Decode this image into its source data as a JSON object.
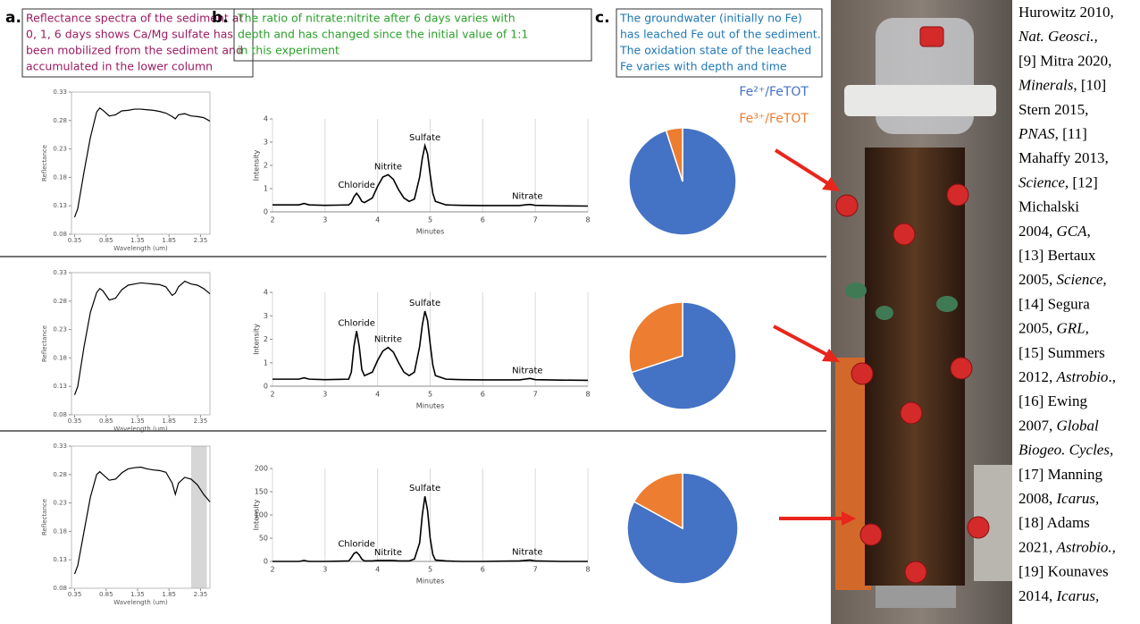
{
  "panels": [
    {
      "letter": "a.",
      "color": "#9b1b60",
      "lines": [
        "Reflectance spectra of the sediment at",
        "0, 1, 6 days shows Ca/Mg sulfate has",
        "been mobilized from the sediment and",
        "accumulated in the lower column"
      ]
    },
    {
      "letter": "b.",
      "color": "#2ca02c",
      "lines": [
        "The ratio of nitrate:nitrite after 6 days varies with",
        "depth and has changed since the initial value of 1:1",
        "in this experiment"
      ]
    },
    {
      "letter": "c.",
      "color": "#1f77b4",
      "lines": [
        "The groundwater (initially no Fe)",
        "has leached Fe out of the sediment.",
        "The oxidation state of the leached",
        "Fe varies with depth and time"
      ]
    }
  ],
  "chart_data": [
    {
      "type": "line",
      "xlabel": "Wavelength (um)",
      "ylabel": "Reflectance",
      "color": "#000000",
      "x": [
        0.35,
        0.4,
        0.5,
        0.6,
        0.7,
        0.75,
        0.8,
        0.9,
        1.0,
        1.1,
        1.2,
        1.3,
        1.4,
        1.5,
        1.6,
        1.7,
        1.8,
        1.9,
        1.95,
        2.0,
        2.1,
        2.2,
        2.3,
        2.4,
        2.5
      ],
      "values": [
        0.11,
        0.125,
        0.19,
        0.25,
        0.295,
        0.302,
        0.298,
        0.288,
        0.29,
        0.297,
        0.298,
        0.3,
        0.3,
        0.299,
        0.298,
        0.296,
        0.293,
        0.287,
        0.283,
        0.29,
        0.292,
        0.288,
        0.287,
        0.285,
        0.279
      ],
      "xlim": [
        0.3,
        2.5
      ],
      "xticks": [
        0.35,
        0.85,
        1.35,
        1.85,
        2.35
      ],
      "ylim": [
        0.08,
        0.33
      ],
      "yticks": [
        0.08,
        0.13,
        0.18,
        0.23,
        0.28,
        0.33
      ]
    },
    {
      "type": "line",
      "xlabel": "Minutes",
      "ylabel": "Intensity",
      "color": "#000000",
      "grid": true,
      "annotations": [
        "Chloride",
        "Nitrite",
        "Sulfate",
        "Nitrate"
      ],
      "x": [
        2,
        2.5,
        2.55,
        2.6,
        2.65,
        2.7,
        3,
        3.45,
        3.5,
        3.55,
        3.6,
        3.65,
        3.7,
        3.75,
        3.9,
        4.0,
        4.1,
        4.2,
        4.3,
        4.4,
        4.5,
        4.6,
        4.7,
        4.8,
        4.85,
        4.9,
        4.95,
        5.0,
        5.05,
        5.1,
        5.3,
        5.6,
        6.0,
        6.7,
        6.8,
        6.9,
        7.0,
        7.5,
        8
      ],
      "values": [
        0.3,
        0.3,
        0.33,
        0.36,
        0.33,
        0.3,
        0.28,
        0.3,
        0.4,
        0.65,
        0.8,
        0.65,
        0.45,
        0.4,
        0.6,
        1.1,
        1.5,
        1.6,
        1.4,
        0.95,
        0.6,
        0.45,
        0.55,
        1.5,
        2.3,
        2.85,
        2.5,
        1.6,
        0.8,
        0.45,
        0.3,
        0.28,
        0.27,
        0.27,
        0.3,
        0.32,
        0.28,
        0.26,
        0.25
      ],
      "xlim": [
        2,
        8
      ],
      "xticks": [
        2,
        3,
        4,
        5,
        6,
        7,
        8
      ],
      "ylim": [
        0,
        4
      ],
      "yticks": [
        0,
        1,
        2,
        3,
        4
      ]
    },
    {
      "type": "pie",
      "categories": [
        "Fe²⁺/FeTOT",
        "Fe³⁺/FeTOT"
      ],
      "colors": [
        "#4472c4",
        "#ed7d31"
      ],
      "values": [
        95,
        5
      ]
    },
    {
      "type": "line",
      "xlabel": "Wavelength (um)",
      "ylabel": "Reflectance",
      "color": "#000000",
      "x": [
        0.35,
        0.4,
        0.5,
        0.6,
        0.7,
        0.75,
        0.8,
        0.9,
        1.0,
        1.1,
        1.2,
        1.3,
        1.4,
        1.5,
        1.6,
        1.7,
        1.8,
        1.9,
        1.95,
        2.0,
        2.1,
        2.2,
        2.3,
        2.4,
        2.5
      ],
      "values": [
        0.115,
        0.13,
        0.2,
        0.26,
        0.295,
        0.302,
        0.298,
        0.282,
        0.285,
        0.3,
        0.308,
        0.31,
        0.312,
        0.311,
        0.31,
        0.309,
        0.305,
        0.29,
        0.294,
        0.305,
        0.315,
        0.31,
        0.308,
        0.302,
        0.293
      ],
      "xlim": [
        0.3,
        2.5
      ],
      "xticks": [
        0.35,
        0.85,
        1.35,
        1.85,
        2.35
      ],
      "ylim": [
        0.08,
        0.33
      ],
      "yticks": [
        0.08,
        0.13,
        0.18,
        0.23,
        0.28,
        0.33
      ]
    },
    {
      "type": "line",
      "xlabel": "Minutes",
      "ylabel": "Intensity",
      "color": "#000000",
      "grid": true,
      "annotations": [
        "Chloride",
        "Nitrite",
        "Sulfate",
        "Nitrate"
      ],
      "x": [
        2,
        2.5,
        2.55,
        2.6,
        2.65,
        2.7,
        3,
        3.45,
        3.5,
        3.55,
        3.6,
        3.65,
        3.7,
        3.75,
        3.9,
        4.0,
        4.1,
        4.2,
        4.3,
        4.4,
        4.5,
        4.6,
        4.7,
        4.8,
        4.85,
        4.9,
        4.95,
        5.0,
        5.05,
        5.1,
        5.3,
        5.6,
        6.0,
        6.7,
        6.8,
        6.9,
        7.0,
        7.5,
        8
      ],
      "values": [
        0.3,
        0.3,
        0.33,
        0.36,
        0.33,
        0.3,
        0.28,
        0.3,
        0.6,
        1.7,
        2.35,
        1.7,
        0.7,
        0.45,
        0.6,
        1.1,
        1.5,
        1.65,
        1.45,
        1.0,
        0.6,
        0.45,
        0.6,
        1.7,
        2.6,
        3.2,
        2.8,
        1.8,
        0.9,
        0.45,
        0.3,
        0.28,
        0.27,
        0.27,
        0.3,
        0.33,
        0.28,
        0.26,
        0.25
      ],
      "xlim": [
        2,
        8
      ],
      "xticks": [
        2,
        3,
        4,
        5,
        6,
        7,
        8
      ],
      "ylim": [
        0,
        4
      ],
      "yticks": [
        0,
        1,
        2,
        3,
        4
      ]
    },
    {
      "type": "pie",
      "colors": [
        "#4472c4",
        "#ed7d31"
      ],
      "values": [
        70,
        30
      ]
    },
    {
      "type": "line",
      "xlabel": "Wavelength (um)",
      "ylabel": "Reflectance",
      "color": "#000000",
      "shade": [
        2.2,
        2.45
      ],
      "x": [
        0.35,
        0.4,
        0.5,
        0.6,
        0.7,
        0.75,
        0.8,
        0.9,
        1.0,
        1.1,
        1.2,
        1.3,
        1.4,
        1.5,
        1.6,
        1.7,
        1.8,
        1.9,
        1.95,
        2.0,
        2.1,
        2.2,
        2.3,
        2.4,
        2.5
      ],
      "values": [
        0.105,
        0.12,
        0.18,
        0.24,
        0.28,
        0.285,
        0.28,
        0.27,
        0.272,
        0.283,
        0.29,
        0.292,
        0.293,
        0.29,
        0.288,
        0.287,
        0.284,
        0.265,
        0.245,
        0.265,
        0.275,
        0.272,
        0.262,
        0.245,
        0.232
      ],
      "xlim": [
        0.3,
        2.5
      ],
      "xticks": [
        0.35,
        0.85,
        1.35,
        1.85,
        2.35
      ],
      "ylim": [
        0.08,
        0.33
      ],
      "yticks": [
        0.08,
        0.13,
        0.18,
        0.23,
        0.28,
        0.33
      ]
    },
    {
      "type": "line",
      "xlabel": "Minutes",
      "ylabel": "Intensity",
      "color": "#000000",
      "grid": true,
      "annotations": [
        "Chloride",
        "Nitrite",
        "Sulfate",
        "Nitrate"
      ],
      "x": [
        2,
        2.5,
        2.55,
        2.6,
        2.65,
        2.7,
        3,
        3.45,
        3.5,
        3.55,
        3.6,
        3.65,
        3.7,
        3.75,
        3.9,
        4.0,
        4.1,
        4.2,
        4.3,
        4.4,
        4.5,
        4.6,
        4.7,
        4.8,
        4.85,
        4.9,
        4.95,
        5.0,
        5.05,
        5.1,
        5.3,
        5.6,
        6.0,
        6.7,
        6.8,
        6.9,
        7.0,
        7.5,
        8
      ],
      "values": [
        0,
        0,
        1,
        2,
        1,
        0,
        0,
        1,
        8,
        17,
        20,
        14,
        5,
        1,
        1,
        2,
        2,
        2,
        2,
        1,
        1,
        1,
        5,
        40,
        100,
        140,
        110,
        50,
        15,
        3,
        1,
        0,
        0,
        1,
        2,
        3,
        1,
        0,
        0
      ],
      "xlim": [
        2,
        8
      ],
      "xticks": [
        2,
        3,
        4,
        5,
        6,
        7,
        8
      ],
      "ylim": [
        0,
        200
      ],
      "yticks": [
        0,
        50,
        100,
        150,
        200
      ]
    },
    {
      "type": "pie",
      "colors": [
        "#4472c4",
        "#ed7d31"
      ],
      "values": [
        83,
        17
      ]
    }
  ],
  "references": [
    [
      {
        "text": "Hurowitz 2010,",
        "italic": false
      }
    ],
    [
      {
        "text": "Nat. Geosci.,",
        "italic": true
      }
    ],
    [
      {
        "text": "[9] Mitra 2020,",
        "italic": false
      }
    ],
    [
      {
        "text": "Minerals",
        "italic": true
      },
      {
        "text": ", [10]",
        "italic": false
      }
    ],
    [
      {
        "text": "Stern 2015,",
        "italic": false
      }
    ],
    [
      {
        "text": "PNAS",
        "italic": true
      },
      {
        "text": ", [11]",
        "italic": false
      }
    ],
    [
      {
        "text": "Mahaffy 2013,",
        "italic": false
      }
    ],
    [
      {
        "text": "Science,",
        "italic": true
      },
      {
        "text": " [12]",
        "italic": false
      }
    ],
    [
      {
        "text": "Michalski",
        "italic": false
      }
    ],
    [
      {
        "text": "2004, ",
        "italic": false
      },
      {
        "text": "GCA",
        "italic": true
      },
      {
        "text": ",",
        "italic": false
      }
    ],
    [
      {
        "text": "[13] Bertaux",
        "italic": false
      }
    ],
    [
      {
        "text": "2005, ",
        "italic": false
      },
      {
        "text": "Science,",
        "italic": true
      }
    ],
    [
      {
        "text": "[14] Segura",
        "italic": false
      }
    ],
    [
      {
        "text": "2005, ",
        "italic": false
      },
      {
        "text": "GRL,",
        "italic": true
      }
    ],
    [
      {
        "text": "[15] Summers",
        "italic": false
      }
    ],
    [
      {
        "text": "2012, ",
        "italic": false
      },
      {
        "text": "Astrobio",
        "italic": true
      },
      {
        "text": "., ",
        "italic": false
      }
    ],
    [
      {
        "text": "[16] Ewing",
        "italic": false
      }
    ],
    [
      {
        "text": "2007, ",
        "italic": false
      },
      {
        "text": "Global",
        "italic": true
      }
    ],
    [
      {
        "text": "Biogeo. Cycles,",
        "italic": true
      }
    ],
    [
      {
        "text": "[17] Manning",
        "italic": false
      }
    ],
    [
      {
        "text": "2008, ",
        "italic": false
      },
      {
        "text": "Icarus,",
        "italic": true
      }
    ],
    [
      {
        "text": "[18] Adams",
        "italic": false
      }
    ],
    [
      {
        "text": "2021, ",
        "italic": false
      },
      {
        "text": "Astrobio.,",
        "italic": true
      }
    ],
    [
      {
        "text": "[19] Kounaves",
        "italic": false
      }
    ],
    [
      {
        "text": "2014, ",
        "italic": false
      },
      {
        "text": "Icarus,",
        "italic": true
      }
    ]
  ]
}
